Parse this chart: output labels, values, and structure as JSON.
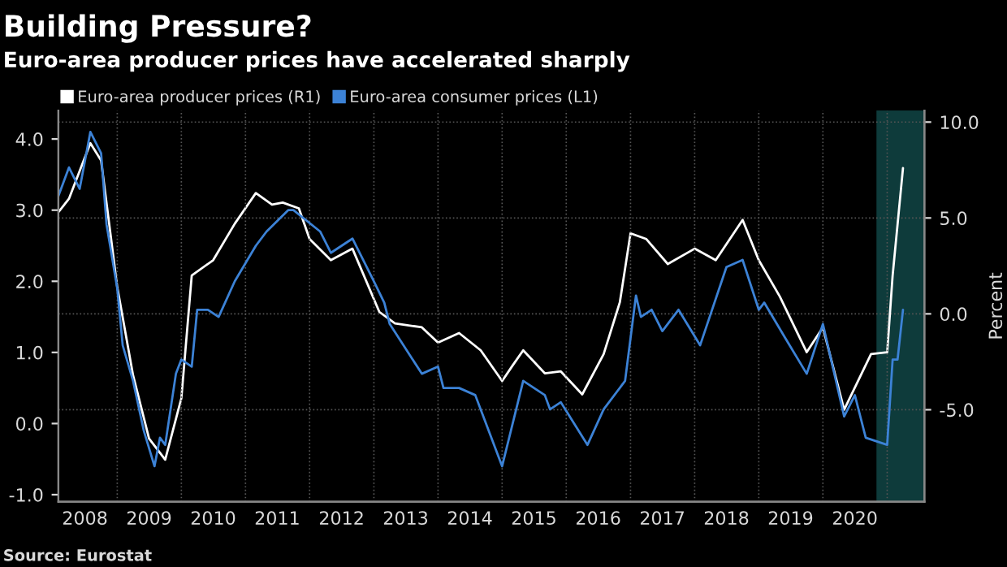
{
  "chart_data": {
    "type": "line",
    "title": "Building Pressure?",
    "subtitle": "Euro-area producer prices have accelerated sharply",
    "y2label": "Percent",
    "annotations": [
      "Source: Eurostat"
    ],
    "legend": "top left",
    "grid": true,
    "marker": "none",
    "line_style": "solid",
    "xlim": [
      "2008-02",
      "2021-08"
    ],
    "xticks": [
      {
        "value": "2008-07",
        "label": "2008"
      },
      {
        "value": "2009-01",
        "label": null
      },
      {
        "value": "2009-07",
        "label": "2009"
      },
      {
        "value": "2010-01",
        "label": null
      },
      {
        "value": "2010-07",
        "label": "2010"
      },
      {
        "value": "2011-01",
        "label": null
      },
      {
        "value": "2011-07",
        "label": "2011"
      },
      {
        "value": "2012-01",
        "label": null
      },
      {
        "value": "2012-07",
        "label": "2012"
      },
      {
        "value": "2013-01",
        "label": null
      },
      {
        "value": "2013-07",
        "label": "2013"
      },
      {
        "value": "2014-01",
        "label": null
      },
      {
        "value": "2014-07",
        "label": "2014"
      },
      {
        "value": "2015-01",
        "label": null
      },
      {
        "value": "2015-07",
        "label": "2015"
      },
      {
        "value": "2016-01",
        "label": null
      },
      {
        "value": "2016-07",
        "label": "2016"
      },
      {
        "value": "2017-01",
        "label": null
      },
      {
        "value": "2017-07",
        "label": "2017"
      },
      {
        "value": "2018-01",
        "label": null
      },
      {
        "value": "2018-07",
        "label": "2018"
      },
      {
        "value": "2019-01",
        "label": null
      },
      {
        "value": "2019-07",
        "label": "2019"
      },
      {
        "value": "2020-01",
        "label": null
      },
      {
        "value": "2020-07",
        "label": "2020"
      },
      {
        "value": "2021-01",
        "label": null
      }
    ],
    "ylim": [
      -1.1,
      4.4
    ],
    "yticks": [
      {
        "value": -1,
        "label": "-1.0"
      },
      {
        "value": 0,
        "label": "0.0"
      },
      {
        "value": 1,
        "label": "1.0"
      },
      {
        "value": 2,
        "label": "2.0"
      },
      {
        "value": 3,
        "label": "3.0"
      },
      {
        "value": 4,
        "label": "4.0"
      }
    ],
    "y2lim": [
      -9.8,
      10.6
    ],
    "y2ticks": [
      {
        "value": -5,
        "label": "-5.0"
      },
      {
        "value": 0,
        "label": "0.0"
      },
      {
        "value": 5,
        "label": "5.0"
      },
      {
        "value": 10,
        "label": "10.0"
      }
    ],
    "bands": [
      {
        "axis": "x",
        "from": "2020-11",
        "to": "2021-08",
        "label": null,
        "color": "#0e3b3b"
      }
    ],
    "series": [
      {
        "name": "Euro-area producer prices (R1)",
        "color": "#ffffff",
        "axis": "y2",
        "x": [
          "2008-02",
          "2008-04",
          "2008-08",
          "2008-10",
          "2009-01",
          "2009-04",
          "2009-07",
          "2009-10",
          "2010-01",
          "2010-03",
          "2010-07",
          "2010-11",
          "2011-03",
          "2011-06",
          "2011-08",
          "2011-11",
          "2012-01",
          "2012-05",
          "2012-09",
          "2013-02",
          "2013-05",
          "2013-10",
          "2014-01",
          "2014-05",
          "2014-09",
          "2015-01",
          "2015-03",
          "2015-05",
          "2015-09",
          "2015-12",
          "2016-04",
          "2016-08",
          "2016-11",
          "2017-01",
          "2017-04",
          "2017-08",
          "2018-01",
          "2018-05",
          "2018-10",
          "2019-01",
          "2019-05",
          "2019-10",
          "2020-01",
          "2020-05",
          "2020-10",
          "2021-01",
          "2021-02",
          "2021-04"
        ],
        "values": [
          5.3,
          6.0,
          8.9,
          8.0,
          1.4,
          -3.2,
          -6.5,
          -7.6,
          -4.4,
          2.0,
          2.8,
          4.7,
          6.3,
          5.7,
          5.8,
          5.5,
          3.9,
          2.8,
          3.4,
          0.1,
          -0.5,
          -0.7,
          -1.5,
          -1.0,
          -1.9,
          -3.5,
          -2.7,
          -1.9,
          -3.1,
          -3.0,
          -4.2,
          -2.1,
          0.6,
          4.2,
          3.9,
          2.6,
          3.4,
          2.8,
          4.9,
          2.8,
          0.9,
          -2.0,
          -0.7,
          -5.0,
          -2.1,
          -2.0,
          2.0,
          7.6
        ]
      },
      {
        "name": "Euro-area consumer prices (L1)",
        "color": "#3c82d6",
        "x": [
          "2008-02",
          "2008-04",
          "2008-06",
          "2008-08",
          "2008-10",
          "2008-11",
          "2009-01",
          "2009-02",
          "2009-04",
          "2009-06",
          "2009-08",
          "2009-09",
          "2009-10",
          "2009-12",
          "2010-01",
          "2010-03",
          "2010-04",
          "2010-06",
          "2010-08",
          "2010-11",
          "2011-03",
          "2011-05",
          "2011-09",
          "2011-10",
          "2012-03",
          "2012-05",
          "2012-09",
          "2013-01",
          "2013-03",
          "2013-04",
          "2013-10",
          "2014-01",
          "2014-02",
          "2014-05",
          "2014-08",
          "2015-01",
          "2015-05",
          "2015-09",
          "2015-10",
          "2015-12",
          "2016-05",
          "2016-08",
          "2016-12",
          "2017-02",
          "2017-03",
          "2017-05",
          "2017-07",
          "2017-10",
          "2018-02",
          "2018-07",
          "2018-10",
          "2019-01",
          "2019-02",
          "2019-06",
          "2019-10",
          "2020-01",
          "2020-05",
          "2020-07",
          "2020-09",
          "2021-01",
          "2021-02",
          "2021-03",
          "2021-04"
        ],
        "values": [
          3.2,
          3.6,
          3.3,
          4.1,
          3.8,
          2.8,
          1.9,
          1.1,
          0.6,
          -0.1,
          -0.6,
          -0.2,
          -0.3,
          0.7,
          0.9,
          0.8,
          1.6,
          1.6,
          1.5,
          2.0,
          2.5,
          2.7,
          3.0,
          3.0,
          2.7,
          2.4,
          2.6,
          2.0,
          1.7,
          1.4,
          0.7,
          0.8,
          0.5,
          0.5,
          0.4,
          -0.6,
          0.6,
          0.4,
          0.2,
          0.3,
          -0.3,
          0.2,
          0.6,
          1.8,
          1.5,
          1.6,
          1.3,
          1.6,
          1.1,
          2.2,
          2.3,
          1.6,
          1.7,
          1.2,
          0.7,
          1.4,
          0.1,
          0.4,
          -0.2,
          -0.3,
          0.9,
          0.9,
          1.6
        ]
      }
    ]
  }
}
